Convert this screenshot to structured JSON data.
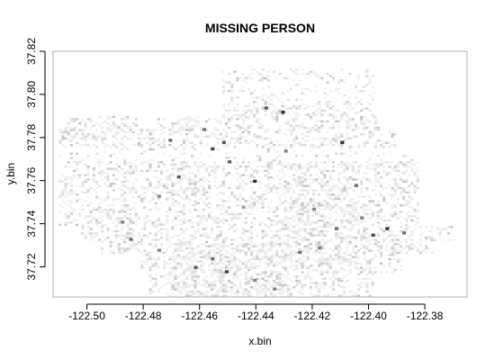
{
  "chart_data": {
    "type": "heatmap",
    "title": "MISSING PERSON",
    "xlabel": "x.bin",
    "ylabel": "y.bin",
    "xlim": [
      -122.512,
      -122.365
    ],
    "ylim": [
      37.706,
      37.82
    ],
    "x_ticks": [
      -122.5,
      -122.48,
      -122.46,
      -122.44,
      -122.42,
      -122.4,
      -122.38
    ],
    "x_tick_labels": [
      "-122.50",
      "-122.48",
      "-122.46",
      "-122.44",
      "-122.42",
      "-122.40",
      "-122.38"
    ],
    "y_ticks": [
      37.72,
      37.74,
      37.76,
      37.78,
      37.8,
      37.82
    ],
    "y_tick_labels": [
      "37.72",
      "37.74",
      "37.76",
      "37.78",
      "37.80",
      "37.82"
    ],
    "bin_width_x": 0.001,
    "bin_width_y": 0.001,
    "color_low": "#f2f2f2",
    "color_high": "#1a1a1a",
    "grid": false,
    "legend": "none",
    "hotspots": [
      {
        "x": -122.431,
        "y": 37.791,
        "v": 0.9
      },
      {
        "x": -122.437,
        "y": 37.793,
        "v": 0.7
      },
      {
        "x": -122.456,
        "y": 37.774,
        "v": 0.8
      },
      {
        "x": -122.452,
        "y": 37.777,
        "v": 0.7
      },
      {
        "x": -122.45,
        "y": 37.768,
        "v": 0.7
      },
      {
        "x": -122.441,
        "y": 37.759,
        "v": 0.9
      },
      {
        "x": -122.41,
        "y": 37.777,
        "v": 0.9
      },
      {
        "x": -122.405,
        "y": 37.757,
        "v": 0.6
      },
      {
        "x": -122.399,
        "y": 37.734,
        "v": 0.8
      },
      {
        "x": -122.394,
        "y": 37.737,
        "v": 0.9
      },
      {
        "x": -122.388,
        "y": 37.735,
        "v": 0.6
      },
      {
        "x": -122.425,
        "y": 37.726,
        "v": 0.6
      },
      {
        "x": -122.418,
        "y": 37.728,
        "v": 0.5
      },
      {
        "x": -122.456,
        "y": 37.723,
        "v": 0.6
      },
      {
        "x": -122.462,
        "y": 37.719,
        "v": 0.7
      },
      {
        "x": -122.451,
        "y": 37.717,
        "v": 0.8
      },
      {
        "x": -122.441,
        "y": 37.713,
        "v": 0.5
      },
      {
        "x": -122.468,
        "y": 37.761,
        "v": 0.7
      },
      {
        "x": -122.471,
        "y": 37.778,
        "v": 0.6
      },
      {
        "x": -122.459,
        "y": 37.783,
        "v": 0.6
      },
      {
        "x": -122.485,
        "y": 37.732,
        "v": 0.6
      },
      {
        "x": -122.488,
        "y": 37.74,
        "v": 0.5
      },
      {
        "x": -122.43,
        "y": 37.773,
        "v": 0.5
      },
      {
        "x": -122.403,
        "y": 37.742,
        "v": 0.5
      },
      {
        "x": -122.42,
        "y": 37.746,
        "v": 0.5
      },
      {
        "x": -122.445,
        "y": 37.747,
        "v": 0.4
      },
      {
        "x": -122.475,
        "y": 37.752,
        "v": 0.5
      },
      {
        "x": -122.434,
        "y": 37.709,
        "v": 0.5
      },
      {
        "x": -122.412,
        "y": 37.737,
        "v": 0.6
      },
      {
        "x": -122.475,
        "y": 37.727,
        "v": 0.5
      }
    ]
  }
}
